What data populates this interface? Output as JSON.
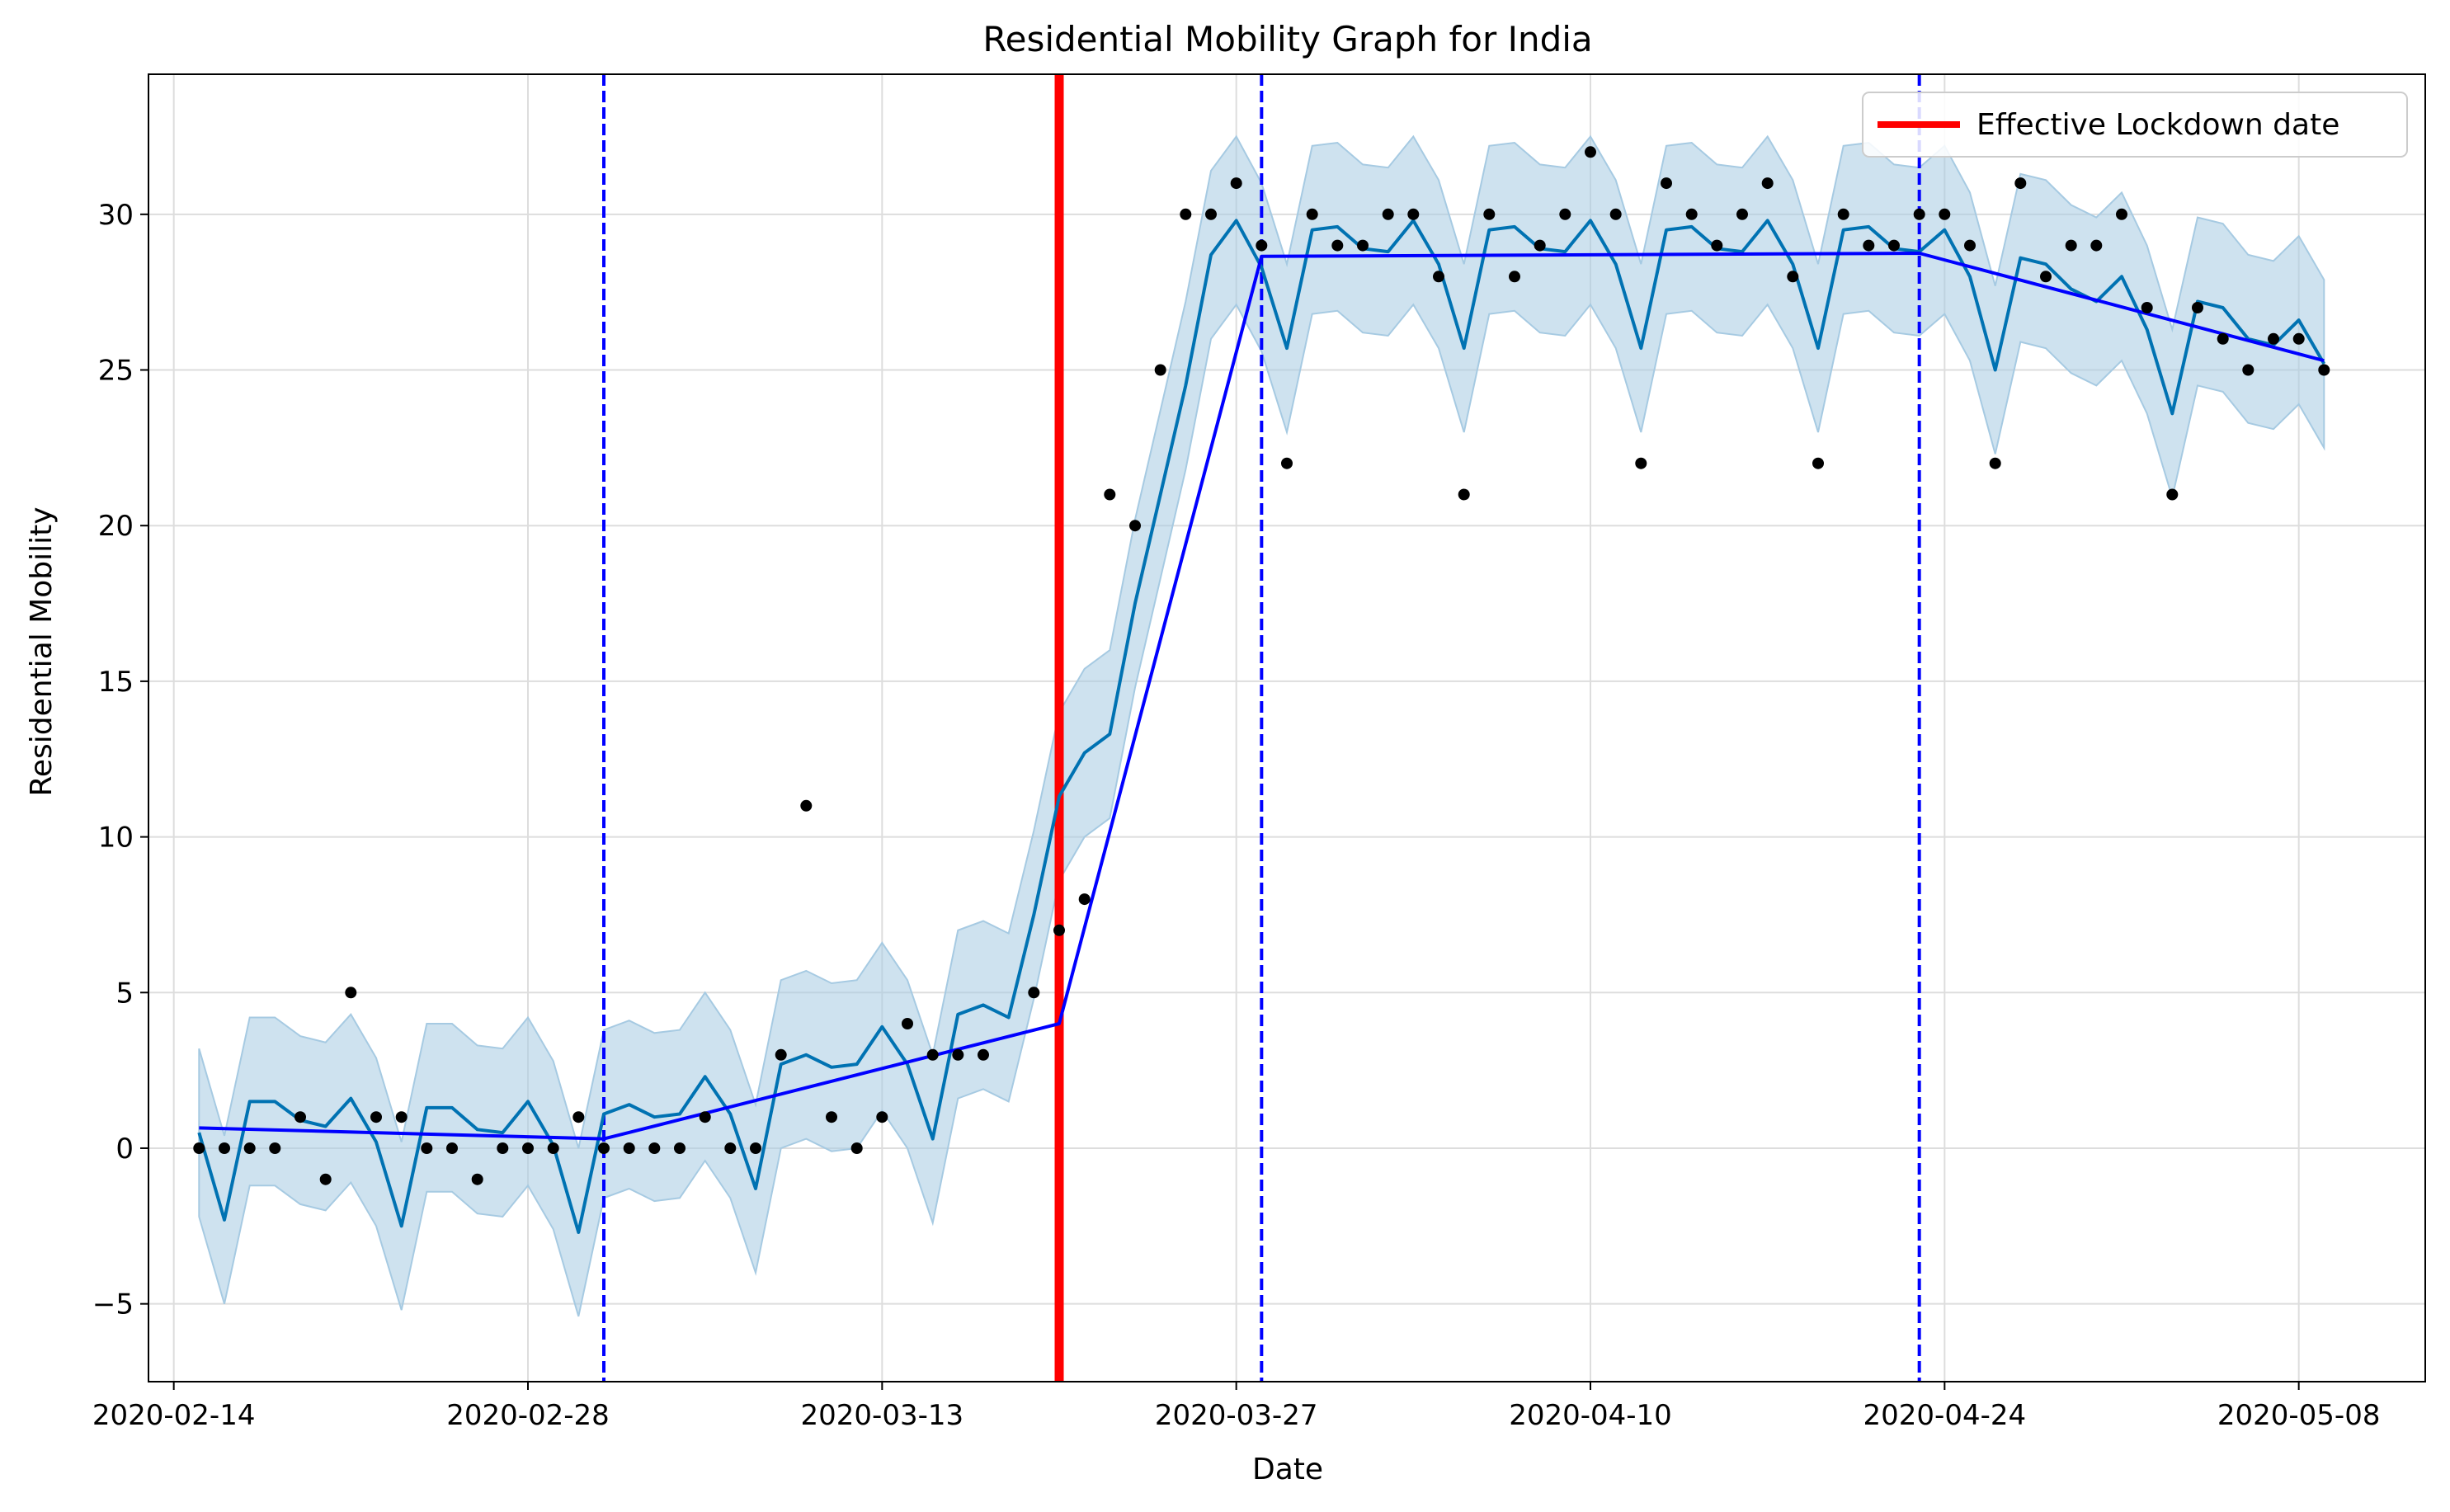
{
  "chart_data": {
    "type": "line",
    "title": "Residential Mobility Graph for India",
    "xlabel": "Date",
    "ylabel": "Residential Mobility",
    "x_start": "2020-02-15",
    "x_end": "2020-05-09",
    "xlim": [
      "2020-02-13",
      "2020-05-13"
    ],
    "ylim": [
      -7.5,
      34.5
    ],
    "x_ticks": [
      "2020-02-14",
      "2020-02-28",
      "2020-03-13",
      "2020-03-27",
      "2020-04-10",
      "2020-04-24",
      "2020-05-08"
    ],
    "y_ticks": [
      -5,
      0,
      5,
      10,
      15,
      20,
      25,
      30
    ],
    "grid": true,
    "legend": {
      "position": "top-right",
      "entries": [
        "Effective Lockdown date"
      ]
    },
    "lockdown_date": "2020-03-20",
    "lockdown_color": "#ff0000",
    "changepoints": [
      "2020-03-02",
      "2020-03-28",
      "2020-04-23"
    ],
    "changepoint_color": "#0000ff",
    "observed": {
      "name": "Observed",
      "color": "#000000",
      "values": [
        0,
        0,
        0,
        0,
        1,
        -1,
        5,
        1,
        1,
        0,
        0,
        -1,
        0,
        0,
        0,
        1,
        0,
        0,
        0,
        0,
        1,
        0,
        0,
        3,
        11,
        1,
        0,
        1,
        4,
        3,
        3,
        3,
        null,
        5,
        7,
        8,
        21,
        20,
        25,
        30,
        30,
        31,
        29,
        22,
        30,
        29,
        29,
        30,
        30,
        28,
        21,
        30,
        28,
        29,
        30,
        32,
        30,
        22,
        31,
        30,
        29,
        30,
        31,
        28,
        22,
        30,
        29,
        29,
        30,
        30,
        29,
        22,
        31,
        28,
        29,
        29,
        30,
        27,
        21,
        27,
        26,
        25,
        26,
        26,
        25
      ]
    },
    "forecast": {
      "name": "Forecast",
      "color": "#0072b2",
      "values": [
        0.5,
        -2.3,
        1.5,
        1.5,
        0.9,
        0.7,
        1.6,
        0.2,
        -2.5,
        1.3,
        1.3,
        0.6,
        0.5,
        1.5,
        0.1,
        -2.7,
        1.1,
        1.4,
        1.0,
        1.1,
        2.3,
        1.1,
        -1.3,
        2.7,
        3.0,
        2.6,
        2.7,
        3.9,
        2.7,
        0.3,
        4.3,
        4.6,
        4.2,
        7.5,
        11.3,
        12.7,
        13.3,
        17.5,
        21.0,
        24.5,
        28.7,
        29.8,
        28.3,
        25.7,
        29.5,
        29.6,
        28.9,
        28.8,
        29.8,
        28.4,
        25.7,
        29.5,
        29.6,
        28.9,
        28.8,
        29.8,
        28.4,
        25.7,
        29.5,
        29.6,
        28.9,
        28.8,
        29.8,
        28.4,
        25.7,
        29.5,
        29.6,
        28.9,
        28.8,
        29.5,
        28.0,
        25.0,
        28.6,
        28.4,
        27.6,
        27.2,
        28.0,
        26.3,
        23.6,
        27.2,
        27.0,
        26.0,
        25.8,
        26.6,
        25.2
      ]
    },
    "uncertainty": {
      "name": "Uncertainty interval",
      "color": "#a6cae2",
      "half_width": 2.7
    },
    "trend": {
      "name": "Trend",
      "color": "#0000ff",
      "points": [
        {
          "x": "2020-02-15",
          "y": 0.65
        },
        {
          "x": "2020-03-02",
          "y": 0.3
        },
        {
          "x": "2020-03-20",
          "y": 4.0
        },
        {
          "x": "2020-03-28",
          "y": 28.65
        },
        {
          "x": "2020-04-23",
          "y": 28.75
        },
        {
          "x": "2020-05-09",
          "y": 25.3
        }
      ]
    }
  }
}
